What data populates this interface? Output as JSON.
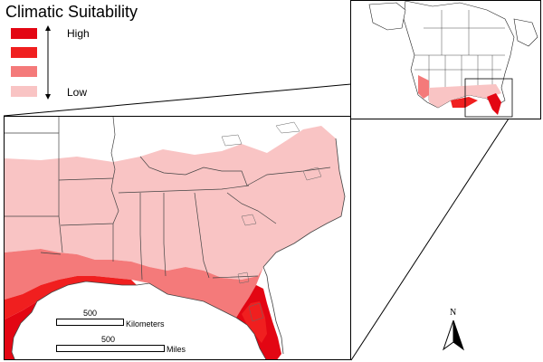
{
  "legend": {
    "title": "Climatic Suitability",
    "high_label": "High",
    "low_label": "Low",
    "classes": [
      {
        "level": "highest",
        "color": "#e30613"
      },
      {
        "level": "high",
        "color": "#f01f1f"
      },
      {
        "level": "medium",
        "color": "#f47a7a"
      },
      {
        "level": "low",
        "color": "#f9c4c4"
      }
    ]
  },
  "scale_bars": {
    "kilometers": {
      "value": "500",
      "unit": "Kilometers"
    },
    "miles": {
      "value": "500",
      "unit": "Miles"
    }
  },
  "north_arrow": {
    "label": "N"
  },
  "colors": {
    "low": "#f9c4c4",
    "medium": "#f47a7a",
    "high": "#f01f1f",
    "highest": "#e30613",
    "outline": "#444444"
  }
}
